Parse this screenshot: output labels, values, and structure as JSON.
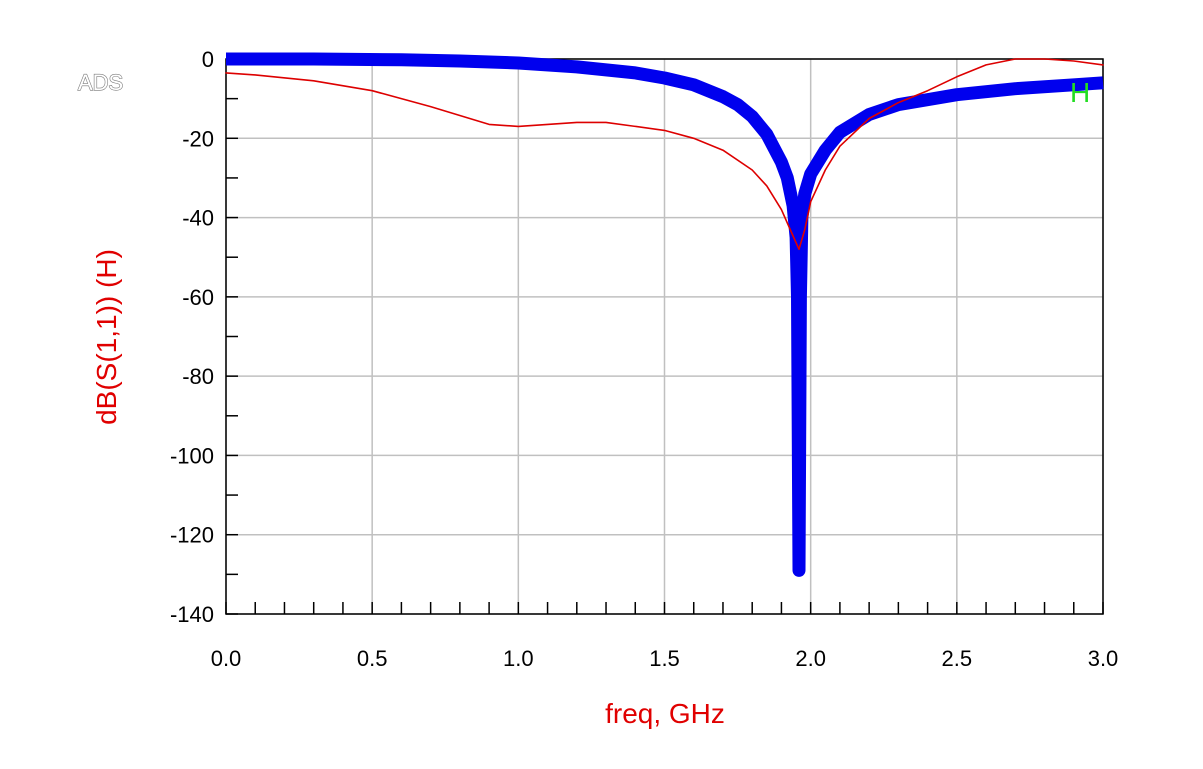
{
  "brand_label": "ADS",
  "chart_data": {
    "type": "line",
    "xlabel": "freq, GHz",
    "ylabel": "dB(S(1,1))  (H)",
    "xlim": [
      0.0,
      3.0
    ],
    "ylim": [
      -140,
      0
    ],
    "x_ticks": [
      "0.0",
      "0.5",
      "1.0",
      "1.5",
      "2.0",
      "2.5",
      "3.0"
    ],
    "y_ticks": [
      "0",
      "-20",
      "-40",
      "-60",
      "-80",
      "-100",
      "-120",
      "-140"
    ],
    "grid": true,
    "marker_label": "H",
    "colors": {
      "thick_series": "#0000ee",
      "thin_series": "#dd0000",
      "axis_title": "#e00000",
      "marker": "#22dd22",
      "grid": "#c0c0c0"
    },
    "series": [
      {
        "color": "#0000ee",
        "width": "thick",
        "x": [
          0.0,
          0.3,
          0.6,
          0.8,
          1.0,
          1.2,
          1.4,
          1.5,
          1.6,
          1.7,
          1.75,
          1.8,
          1.85,
          1.9,
          1.92,
          1.94,
          1.95,
          1.955,
          1.96,
          1.965,
          1.97,
          1.98,
          2.0,
          2.05,
          2.1,
          2.2,
          2.3,
          2.5,
          2.7,
          2.9,
          3.0
        ],
        "y": [
          0,
          0,
          -0.2,
          -0.5,
          -1,
          -2,
          -3.5,
          -4.8,
          -6.5,
          -9.5,
          -11.5,
          -14.5,
          -19,
          -26,
          -30,
          -37,
          -45,
          -60,
          -129,
          -60,
          -40,
          -34,
          -29,
          -23,
          -18.5,
          -14,
          -11.5,
          -9,
          -7.5,
          -6.5,
          -6
        ]
      },
      {
        "color": "#dd0000",
        "width": "thin",
        "x": [
          0.0,
          0.1,
          0.3,
          0.5,
          0.7,
          0.9,
          1.0,
          1.1,
          1.2,
          1.3,
          1.5,
          1.6,
          1.7,
          1.8,
          1.85,
          1.9,
          1.93,
          1.96,
          1.98,
          2.0,
          2.05,
          2.1,
          2.2,
          2.3,
          2.4,
          2.5,
          2.6,
          2.7,
          2.8,
          2.9,
          3.0
        ],
        "y": [
          -3.5,
          -4,
          -5.5,
          -8,
          -12,
          -16.5,
          -17,
          -16.5,
          -16,
          -16,
          -18,
          -20,
          -23,
          -28,
          -32,
          -38,
          -43,
          -48,
          -43,
          -36,
          -28,
          -22,
          -15,
          -11,
          -8,
          -4.5,
          -1.5,
          0,
          0,
          -0.5,
          -1.5
        ]
      }
    ]
  }
}
